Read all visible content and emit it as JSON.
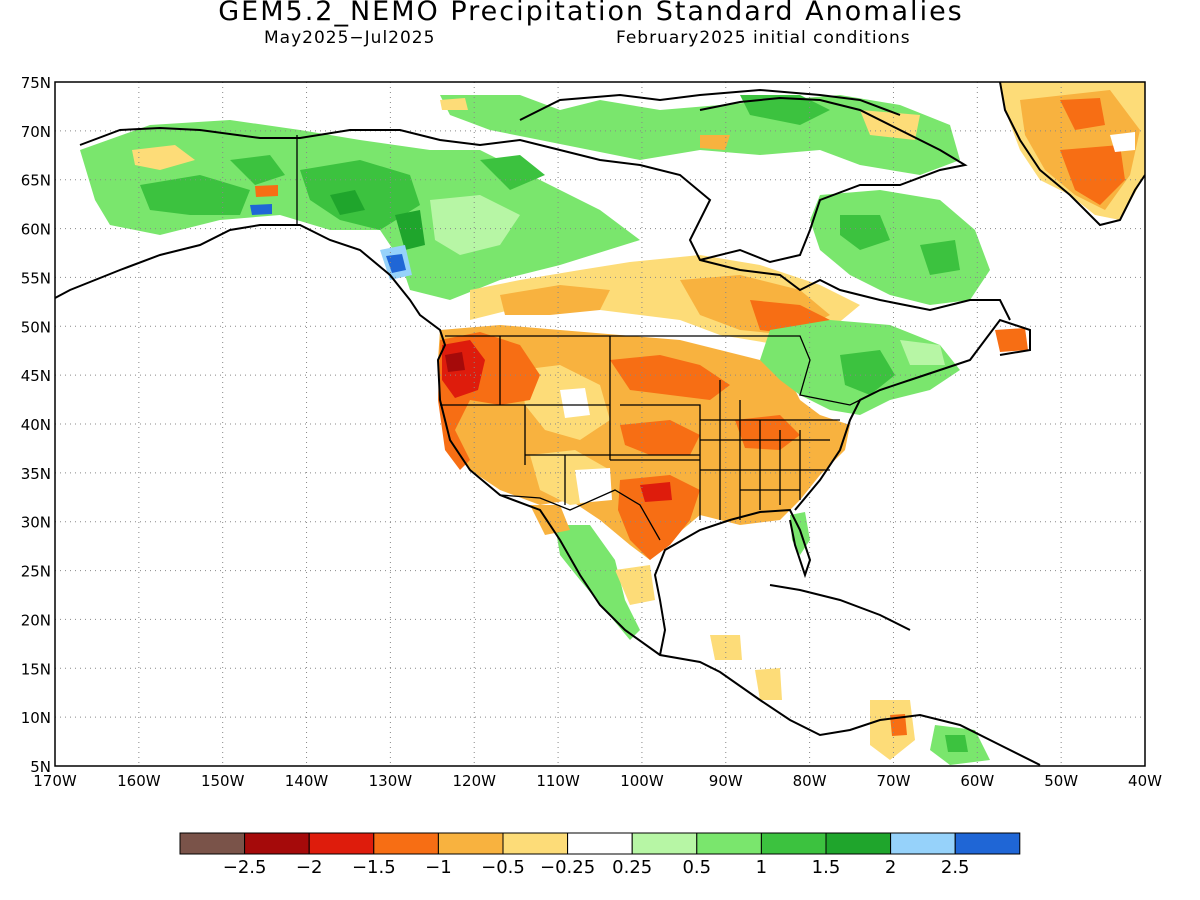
{
  "title": "GEM5.2_NEMO Precipitation Standard Anomalies",
  "period": "May2025−Jul2025",
  "initial_conditions": "February2025 initial conditions",
  "map": {
    "projection": "cylindrical equidistant",
    "lon_range": [
      -170,
      -40
    ],
    "lat_range": [
      5,
      75
    ],
    "gridlines": "dotted",
    "x_ticks": [
      "170W",
      "160W",
      "150W",
      "140W",
      "130W",
      "120W",
      "110W",
      "100W",
      "90W",
      "80W",
      "70W",
      "60W",
      "50W",
      "40W"
    ],
    "y_ticks": [
      "75N",
      "70N",
      "65N",
      "60N",
      "55N",
      "50N",
      "45N",
      "40N",
      "35N",
      "30N",
      "25N",
      "20N",
      "15N",
      "10N",
      "5N"
    ]
  },
  "colorbar": {
    "colors": [
      "#7a5349",
      "#a50a0a",
      "#de1c0c",
      "#f76e14",
      "#f8b23f",
      "#fddc78",
      "#ffffff",
      "#b7f6a5",
      "#7ae66d",
      "#3cc23f",
      "#1fa52c",
      "#96d2fa",
      "#1f66d6"
    ],
    "labels": [
      "−2.5",
      "−2",
      "−1.5",
      "−1",
      "−0.5",
      "−0.25",
      "0.25",
      "0.5",
      "1",
      "1.5",
      "2",
      "2.5"
    ]
  }
}
